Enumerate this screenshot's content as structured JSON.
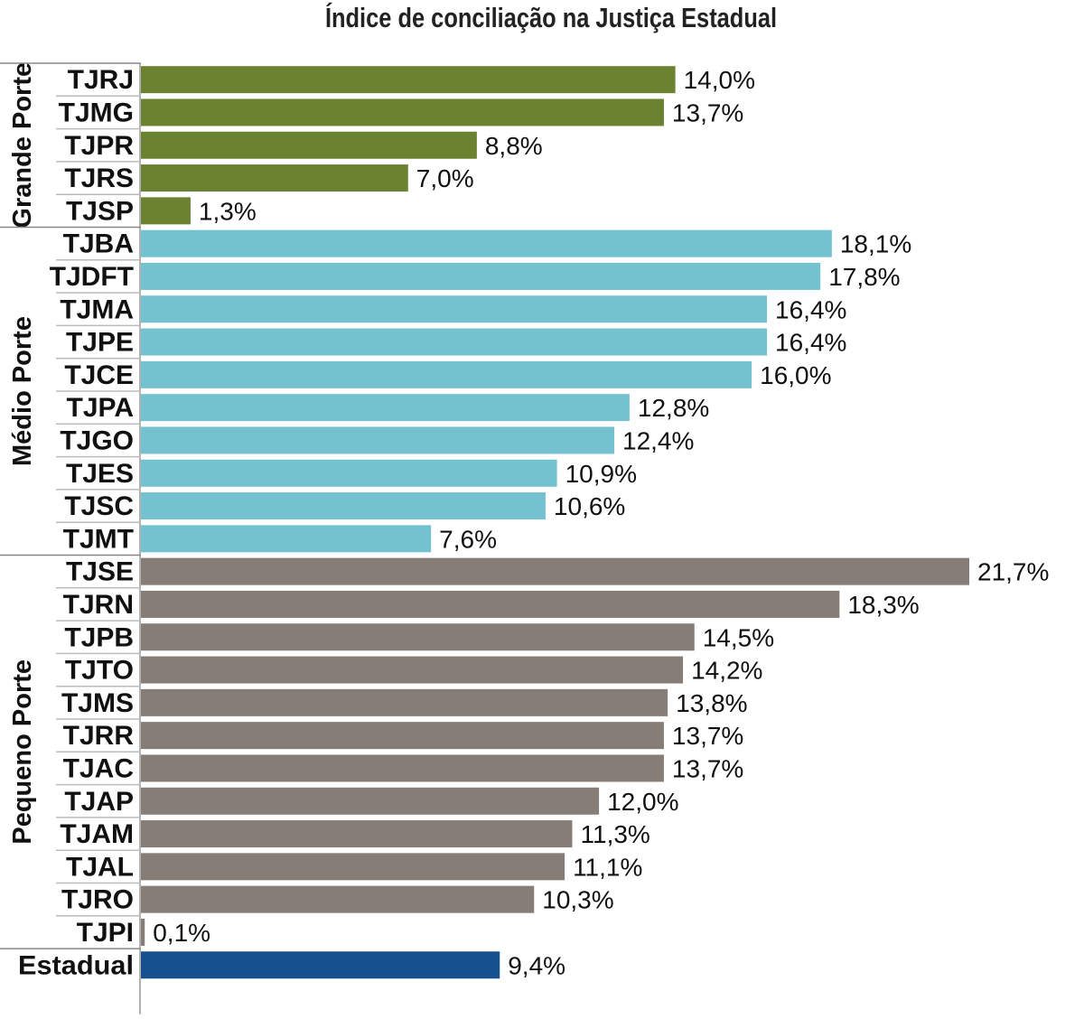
{
  "chart_data": {
    "type": "bar",
    "orientation": "horizontal",
    "title": "Índice de conciliação na Justiça Estadual",
    "xlim": [
      0,
      21.7
    ],
    "grid": false,
    "groups": [
      {
        "name": "Grande Porte",
        "color": "#6b8331",
        "categories": [
          "TJRJ",
          "TJMG",
          "TJPR",
          "TJRS",
          "TJSP"
        ],
        "values": [
          14.0,
          13.7,
          8.8,
          7.0,
          1.3
        ],
        "labels": [
          "14,0%",
          "13,7%",
          "8,8%",
          "7,0%",
          "1,3%"
        ]
      },
      {
        "name": "Médio Porte",
        "color": "#74c2cf",
        "categories": [
          "TJBA",
          "TJDFT",
          "TJMA",
          "TJPE",
          "TJCE",
          "TJPA",
          "TJGO",
          "TJES",
          "TJSC",
          "TJMT"
        ],
        "values": [
          18.1,
          17.8,
          16.4,
          16.4,
          16.0,
          12.8,
          12.4,
          10.9,
          10.6,
          7.6
        ],
        "labels": [
          "18,1%",
          "17,8%",
          "16,4%",
          "16,4%",
          "16,0%",
          "12,8%",
          "12,4%",
          "10,9%",
          "10,6%",
          "7,6%"
        ]
      },
      {
        "name": "Pequeno Porte",
        "color": "#857d76",
        "categories": [
          "TJSE",
          "TJRN",
          "TJPB",
          "TJTO",
          "TJMS",
          "TJRR",
          "TJAC",
          "TJAP",
          "TJAM",
          "TJAL",
          "TJRO",
          "TJPI"
        ],
        "values": [
          21.7,
          18.3,
          14.5,
          14.2,
          13.8,
          13.7,
          13.7,
          12.0,
          11.3,
          11.1,
          10.3,
          0.1
        ],
        "labels": [
          "21,7%",
          "18,3%",
          "14,5%",
          "14,2%",
          "13,8%",
          "13,7%",
          "13,7%",
          "12,0%",
          "11,3%",
          "11,1%",
          "10,3%",
          "0,1%"
        ]
      },
      {
        "name": "",
        "color": "#16508f",
        "categories": [
          "Estadual"
        ],
        "values": [
          9.4
        ],
        "labels": [
          "9,4%"
        ]
      }
    ]
  }
}
